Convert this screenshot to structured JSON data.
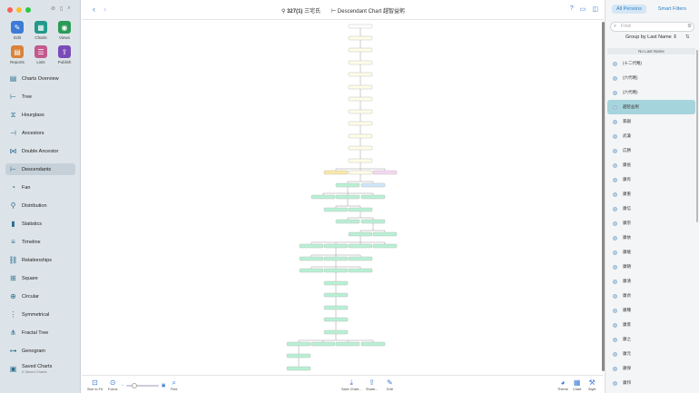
{
  "window": {
    "traffic_colors": [
      "#ff5f57",
      "#febc2e",
      "#28c840"
    ]
  },
  "toolbar_tiles": [
    {
      "label": "Edit",
      "icon": "pencil-icon",
      "color": "#3d7bd6",
      "glyph": "✎"
    },
    {
      "label": "Charts",
      "icon": "charts-icon",
      "color": "#22998a",
      "glyph": "▦"
    },
    {
      "label": "Views",
      "icon": "eye-icon",
      "color": "#2c9a57",
      "glyph": "◉"
    },
    {
      "label": "Reports",
      "icon": "reports-icon",
      "color": "#d9833a",
      "glyph": "▤"
    },
    {
      "label": "Lists",
      "icon": "lists-icon",
      "color": "#c25a8e",
      "glyph": "☰"
    },
    {
      "label": "Publish",
      "icon": "publish-icon",
      "color": "#7a4bb8",
      "glyph": "⇪"
    }
  ],
  "nav": [
    {
      "label": "Charts Overview",
      "icon": "charts-overview-icon",
      "glyph": "▤"
    },
    {
      "label": "Tree",
      "icon": "tree-icon",
      "glyph": "⊢"
    },
    {
      "label": "Hourglass",
      "icon": "hourglass-icon",
      "glyph": "⧖"
    },
    {
      "label": "Ancestors",
      "icon": "ancestors-icon",
      "glyph": "⊣"
    },
    {
      "label": "Double Ancestor",
      "icon": "double-ancestor-icon",
      "glyph": "⋈"
    },
    {
      "label": "Descendants",
      "icon": "descendants-icon",
      "glyph": "⊢",
      "active": true
    },
    {
      "label": "Fan",
      "icon": "fan-icon",
      "glyph": "◔"
    },
    {
      "label": "Distribution",
      "icon": "distribution-icon",
      "glyph": "⚲"
    },
    {
      "label": "Statistics",
      "icon": "statistics-icon",
      "glyph": "▮"
    },
    {
      "label": "Timeline",
      "icon": "timeline-icon",
      "glyph": "≡"
    },
    {
      "label": "Relationships",
      "icon": "relationships-icon",
      "glyph": "⛓"
    },
    {
      "label": "Square",
      "icon": "square-icon",
      "glyph": "⊞"
    },
    {
      "label": "Circular",
      "icon": "circular-icon",
      "glyph": "⊕"
    },
    {
      "label": "Symmetrical",
      "icon": "symmetrical-icon",
      "glyph": "⋮"
    },
    {
      "label": "Fractal Tree",
      "icon": "fractal-tree-icon",
      "glyph": "⋔"
    },
    {
      "label": "Genogram",
      "icon": "genogram-icon",
      "glyph": "⊶"
    },
    {
      "label": "Saved Charts",
      "sub": "0 Saved Charts",
      "icon": "saved-charts-icon",
      "glyph": "▣"
    }
  ],
  "topbar": {
    "person": "327(1)",
    "person_suffix": "三宅氏",
    "chart": "Descendant Chart",
    "chart_subject": "越智益躬"
  },
  "bottombar": {
    "size_to_fit": "Size to Fit",
    "focus": "Focus",
    "find": "Find",
    "save_chart": "Save Chart...",
    "share": "Share...",
    "edit": "Edit",
    "theme": "Theme",
    "chart": "Chart",
    "style": "Style"
  },
  "rpanel": {
    "tab_all": "All Persons",
    "tab_smart": "Smart Filters",
    "find_placeholder": "Find",
    "group_by": "Group by Last Name",
    "section": "No Last Name",
    "persons": [
      {
        "name": "(十二代略)"
      },
      {
        "name": "(六代略)"
      },
      {
        "name": "(六代略)"
      },
      {
        "name": "越智益躬",
        "selected": true
      },
      {
        "name": "家嗣"
      },
      {
        "name": "武兼"
      },
      {
        "name": "広勝"
      },
      {
        "name": "康長"
      },
      {
        "name": "康有"
      },
      {
        "name": "康重"
      },
      {
        "name": "康信"
      },
      {
        "name": "康宗"
      },
      {
        "name": "康依"
      },
      {
        "name": "康継"
      },
      {
        "name": "康朝"
      },
      {
        "name": "康清"
      },
      {
        "name": "康貞"
      },
      {
        "name": "康種"
      },
      {
        "name": "康景"
      },
      {
        "name": "康之"
      },
      {
        "name": "康元"
      },
      {
        "name": "康保"
      },
      {
        "name": "康邦"
      }
    ]
  },
  "tree_colors": {
    "root": "#ffffff",
    "generic": "#fdfde8",
    "male": "#b8f0d4",
    "female": "#f5d8f0",
    "blue": "#d0e6f8",
    "yellow": "#fbe8a8",
    "line": "#999999"
  }
}
